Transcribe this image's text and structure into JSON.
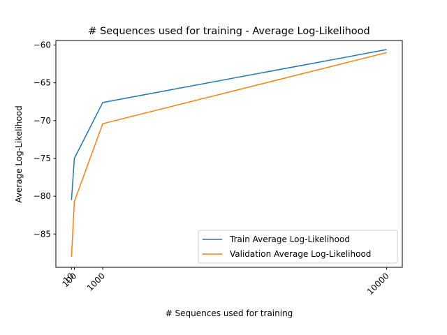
{
  "chart_data": {
    "type": "line",
    "title": "# Sequences used for training - Average Log-Likelihood",
    "xlabel": "# Sequences used for training",
    "ylabel": "Average Log-Likelihood",
    "x": [
      10,
      100,
      1000,
      10000
    ],
    "x_tick_labels": [
      "10",
      "100",
      "1000",
      "10000"
    ],
    "y_ticks": [
      -85,
      -80,
      -75,
      -70,
      -65,
      -60
    ],
    "y_tick_labels": [
      "−85",
      "−80",
      "−75",
      "−70",
      "−65",
      "−60"
    ],
    "xlim": [
      -485,
      10495
    ],
    "ylim": [
      -89.4,
      -59.4
    ],
    "grid": false,
    "legend_position": "lower-right",
    "series": [
      {
        "name": "Train Average Log-Likelihood",
        "color": "#1f77b4",
        "values": [
          -80.5,
          -75.0,
          -67.6,
          -60.6
        ]
      },
      {
        "name": "Validation Average Log-Likelihood",
        "color": "#ff7f0e",
        "values": [
          -88.0,
          -80.7,
          -70.4,
          -61.0
        ]
      }
    ]
  }
}
